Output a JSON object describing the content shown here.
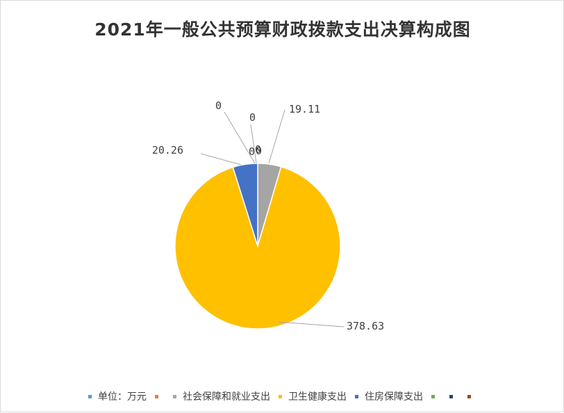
{
  "chart_data": {
    "type": "pie",
    "title": "2021年一般公共预算财政拨款支出决算构成图",
    "slices": [
      {
        "name": "单位：万元",
        "value": 0,
        "label": "",
        "color": "#5B9BD5"
      },
      {
        "name": "",
        "value": 0,
        "label": "0",
        "color": "#ED7D31"
      },
      {
        "name": "社会保障和就业支出",
        "value": 19.11,
        "label": "19.11",
        "color": "#A5A5A5"
      },
      {
        "name": "卫生健康支出",
        "value": 378.63,
        "label": "378.63",
        "color": "#FFC000"
      },
      {
        "name": "住房保障支出",
        "value": 20.26,
        "label": "20.26",
        "color": "#4472C4"
      },
      {
        "name": "",
        "value": 0,
        "label": "0",
        "color": "#70AD47"
      },
      {
        "name": "",
        "value": 0,
        "label": "0",
        "color": "#264478"
      },
      {
        "name": "",
        "value": 0,
        "label": "0",
        "color": "#9E480E"
      },
      {
        "name": "",
        "value": 0,
        "label": "0",
        "color": "#636363"
      }
    ],
    "legend": [
      {
        "name": "单位：万元",
        "color": "#5B9BD5"
      },
      {
        "name": "",
        "color": "#ED7D31"
      },
      {
        "name": "社会保障和就业支出",
        "color": "#A5A5A5"
      },
      {
        "name": "卫生健康支出",
        "color": "#FFC000"
      },
      {
        "name": "住房保障支出",
        "color": "#4472C4"
      },
      {
        "name": "",
        "color": "#70AD47"
      },
      {
        "name": "",
        "color": "#264478"
      },
      {
        "name": "",
        "color": "#9E480E"
      }
    ],
    "legend_position": "bottom",
    "leader_line_color": "#a6a6a6"
  }
}
